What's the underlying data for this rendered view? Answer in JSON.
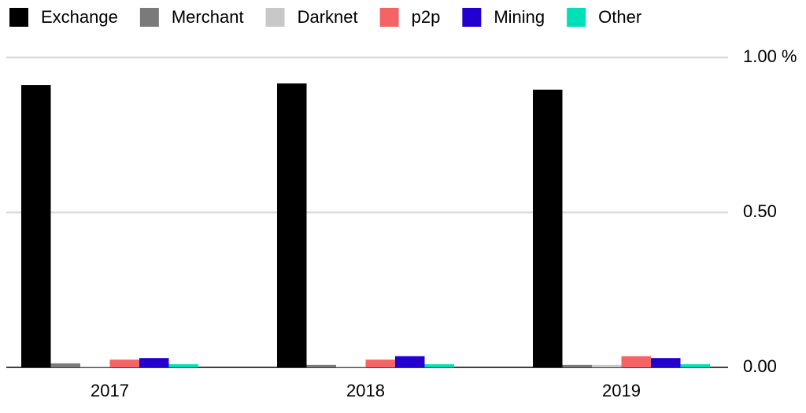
{
  "chart_data": {
    "type": "bar",
    "categories": [
      "2017",
      "2018",
      "2019"
    ],
    "series": [
      {
        "name": "Exchange",
        "color": "#000000",
        "values": [
          0.911,
          0.916,
          0.896
        ]
      },
      {
        "name": "Merchant",
        "color": "#7a7a7a",
        "values": [
          0.013,
          0.008,
          0.008
        ]
      },
      {
        "name": "Darknet",
        "color": "#c8c8c8",
        "values": [
          0.003,
          0.003,
          0.008
        ]
      },
      {
        "name": "p2p",
        "color": "#f46464",
        "values": [
          0.025,
          0.025,
          0.036
        ]
      },
      {
        "name": "Mining",
        "color": "#2200d0",
        "values": [
          0.03,
          0.036,
          0.03
        ]
      },
      {
        "name": "Other",
        "color": "#00e0b8",
        "values": [
          0.01,
          0.01,
          0.01
        ]
      }
    ],
    "ylim": [
      0,
      1
    ],
    "yticks": [
      {
        "value": 0,
        "label": "0.00"
      },
      {
        "value": 0.5,
        "label": "0.50"
      },
      {
        "value": 1,
        "label": "1.00 %"
      }
    ],
    "grid": true,
    "legend": "top"
  }
}
